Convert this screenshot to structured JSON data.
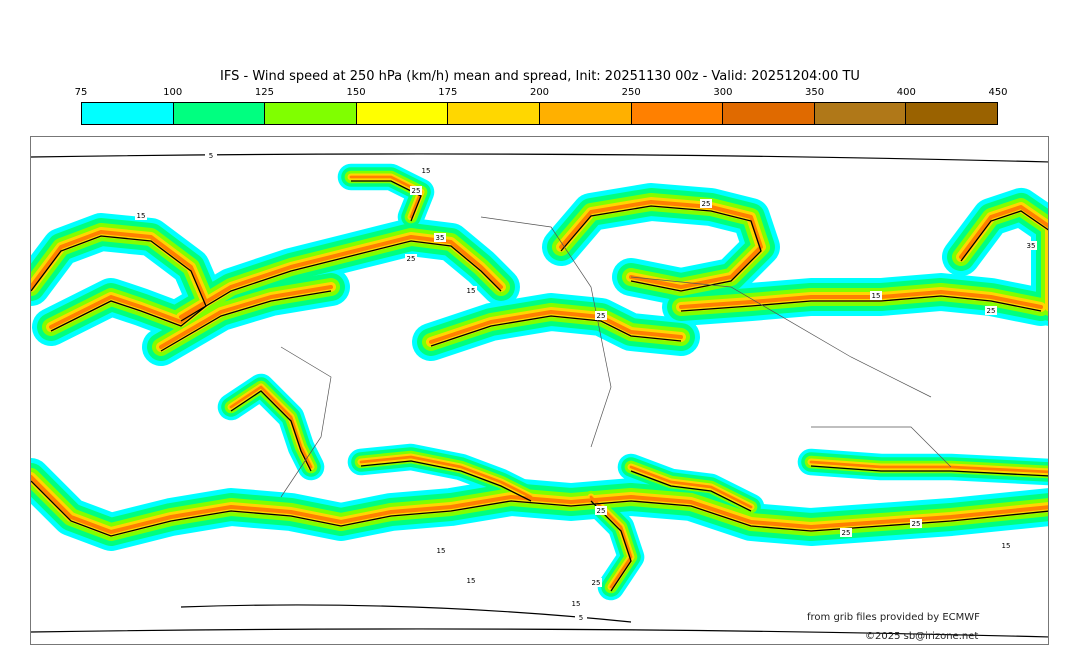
{
  "title": "IFS - Wind speed at 250 hPa (km/h) mean and spread, Init: 20251130 00z - Valid: 20251204:00 TU",
  "colorbar": {
    "ticks": [
      "75",
      "100",
      "125",
      "150",
      "175",
      "200",
      "250",
      "300",
      "350",
      "400",
      "450"
    ],
    "colors": [
      "#00ffff",
      "#00ff80",
      "#80ff00",
      "#ffff00",
      "#ffd700",
      "#ffb000",
      "#ff8000",
      "#e06a00",
      "#b07818",
      "#9a6200"
    ]
  },
  "contour_labels": [
    "15",
    "25",
    "35",
    "15",
    "25",
    "25",
    "15",
    "25",
    "35",
    "15",
    "25",
    "25",
    "15",
    "25",
    "15",
    "5",
    "5",
    "15",
    "25",
    "25",
    "15"
  ],
  "credits": {
    "source": "from grib files provided by ECMWF",
    "copyright": "©2025 sb@irizone.net"
  }
}
